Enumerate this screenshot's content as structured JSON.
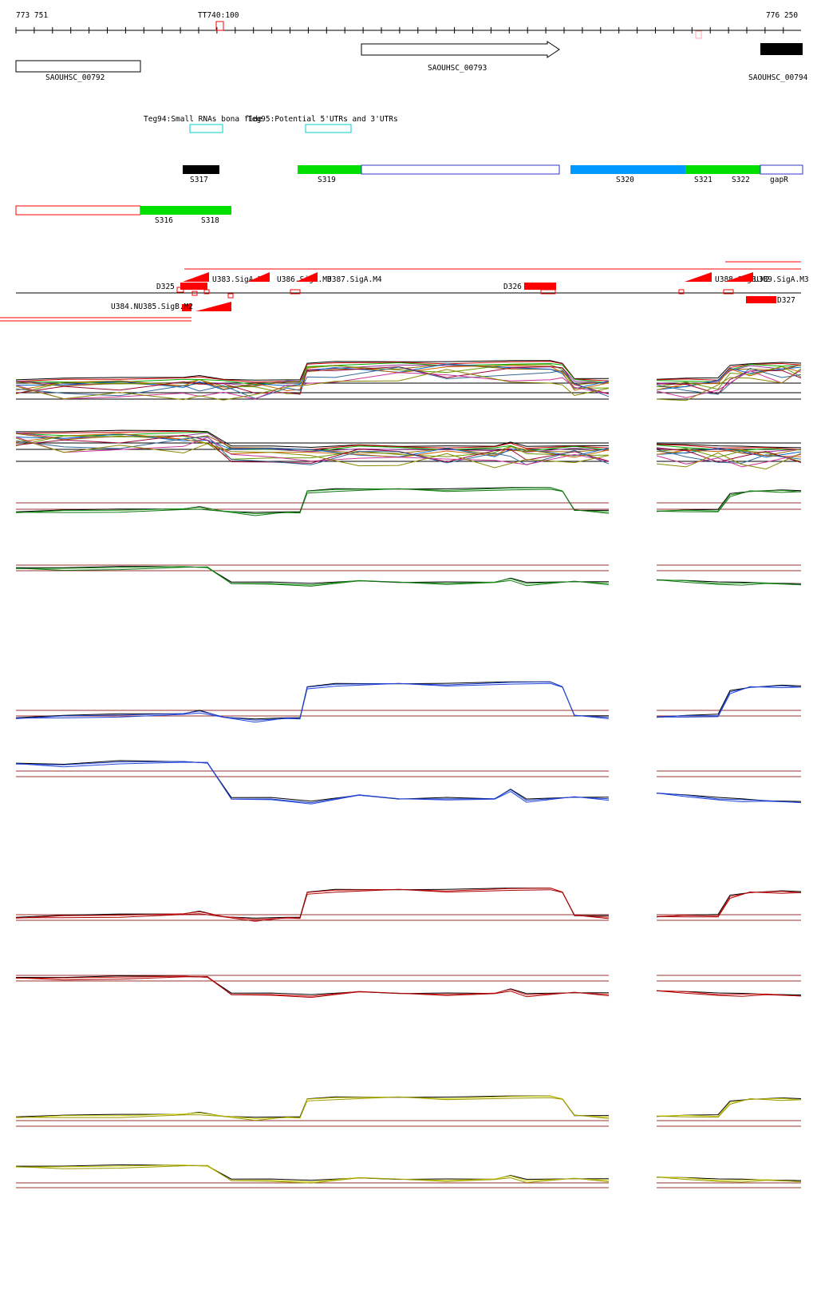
{
  "ruler": {
    "start_label": "773 751",
    "end_label": "776 250",
    "marker_label": "TT740:100"
  },
  "genes": [
    {
      "id": "SAOUHSC_00792",
      "label": "SAOUHSC_00792"
    },
    {
      "id": "SAOUHSC_00793",
      "label": "SAOUHSC_00793"
    },
    {
      "id": "SAOUHSC_00794",
      "label": "SAOUHSC_00794"
    }
  ],
  "tegs": [
    {
      "label": "Teg94:Small RNAs bona fide"
    },
    {
      "label": "Teg95:Potential 5'UTRs and 3'UTRs"
    }
  ],
  "segments": [
    "S317",
    "S319",
    "S320",
    "S321",
    "S322",
    "gapR",
    "S316",
    "S318"
  ],
  "features": [
    "D325",
    "U383.SigA.M3",
    "U386.SigA.M3",
    "U387.SigA.M4",
    "D326",
    "U388.SigB.M2",
    "U389.SigA.M3",
    "D327",
    "U384.NU385.SigB.M2"
  ],
  "colors": {
    "green": "#00e000",
    "blue": "#0099ff",
    "red": "#ff0000",
    "navy": "#1a3fcc",
    "threshold": "#993333",
    "yellow": "#cccc00"
  },
  "tracks": [
    {
      "id": "multi-1",
      "color": "mixed"
    },
    {
      "id": "multi-2",
      "color": "mixed"
    },
    {
      "id": "green-1",
      "color": "#1a7a1a"
    },
    {
      "id": "green-2",
      "color": "#1a7a1a"
    },
    {
      "id": "blue-1",
      "color": "#1a3fcc"
    },
    {
      "id": "blue-2",
      "color": "#1a3fcc"
    },
    {
      "id": "red-1",
      "color": "#cc1111"
    },
    {
      "id": "red-2",
      "color": "#cc1111"
    },
    {
      "id": "yellow-1",
      "color": "#cccc00"
    },
    {
      "id": "yellow-2",
      "color": "#cccc00"
    }
  ]
}
